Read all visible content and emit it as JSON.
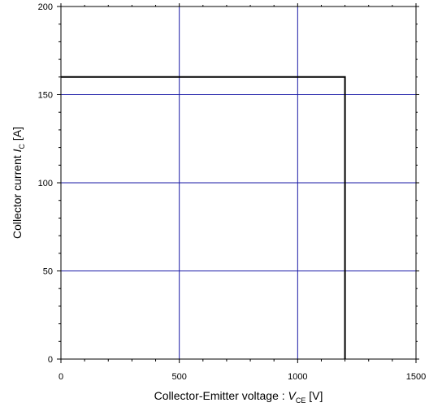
{
  "chart_data": {
    "type": "line",
    "xlabel": {
      "prefix": "Collector-Emitter voltage : ",
      "symbol": "V",
      "subscript": "CE",
      "suffix": " [V]"
    },
    "ylabel": {
      "prefix": "Collector current ",
      "symbol": "I",
      "subscript": "C",
      "suffix": " [A]"
    },
    "xlim": [
      0,
      1500
    ],
    "ylim": [
      0,
      200
    ],
    "x_ticks": [
      "0",
      "500",
      "1000",
      "1500"
    ],
    "y_ticks": [
      "0",
      "50",
      "100",
      "150",
      "200"
    ],
    "grid": true,
    "colors": {
      "grid": "#1a1aa6",
      "series": "#000000",
      "axes": "#000000"
    },
    "series": [
      {
        "x": [
          0,
          1200,
          1200
        ],
        "y": [
          160,
          160,
          0
        ]
      }
    ]
  }
}
